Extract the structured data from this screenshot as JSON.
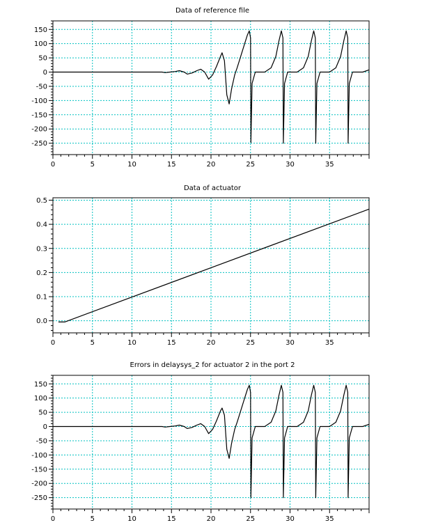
{
  "chart_data": [
    {
      "type": "line",
      "title": "Data of reference file",
      "xlim": [
        0,
        40
      ],
      "ylim": [
        -290,
        180
      ],
      "grid": true,
      "xticks": [
        0,
        5,
        10,
        15,
        20,
        25,
        30,
        35
      ],
      "xtick_labels": [
        "0",
        "5",
        "10",
        "15",
        "20",
        "25",
        "30",
        "35"
      ],
      "yticks": [
        -250,
        -200,
        -150,
        -100,
        -50,
        0,
        50,
        100,
        150
      ],
      "ytick_labels": [
        "-250",
        "-200",
        "-150",
        "-100",
        "-50",
        "0",
        "50",
        "100",
        "150"
      ],
      "series": [
        {
          "line_color": "#000000",
          "x": [
            0,
            13.8,
            14.2,
            14.8,
            15.5,
            16.0,
            16.6,
            17.0,
            17.6,
            18.2,
            18.7,
            19.2,
            19.7,
            20.2,
            20.7,
            21.2,
            21.4,
            21.7,
            22.0,
            22.3,
            22.6,
            23.0,
            23.3,
            23.7,
            24.2,
            24.6,
            24.85,
            25.0,
            25.05,
            25.2,
            25.6,
            26.2,
            26.8,
            27.6,
            28.2,
            28.6,
            28.9,
            29.1,
            29.15,
            29.3,
            29.7,
            30.3,
            30.9,
            31.7,
            32.3,
            32.7,
            33.0,
            33.2,
            33.25,
            33.4,
            33.8,
            34.4,
            35.0,
            35.8,
            36.4,
            36.8,
            37.1,
            37.3,
            37.35,
            37.5,
            37.9,
            38.5,
            39.2,
            40
          ],
          "y": [
            0,
            0,
            -2,
            0,
            2,
            5,
            0,
            -7,
            -3,
            5,
            10,
            0,
            -25,
            -10,
            20,
            55,
            68,
            40,
            -80,
            -112,
            -60,
            -10,
            15,
            50,
            95,
            130,
            145,
            120,
            -248,
            -40,
            0,
            0,
            0,
            15,
            55,
            110,
            145,
            120,
            -250,
            -40,
            0,
            0,
            0,
            15,
            55,
            110,
            145,
            120,
            -250,
            -40,
            0,
            0,
            0,
            15,
            55,
            110,
            145,
            120,
            -250,
            -40,
            0,
            0,
            0,
            8
          ]
        }
      ]
    },
    {
      "type": "line",
      "title": "Data of actuator",
      "xlim": [
        0,
        40
      ],
      "ylim": [
        -0.05,
        0.51
      ],
      "grid": true,
      "xticks": [
        0,
        5,
        10,
        15,
        20,
        25,
        30,
        35
      ],
      "xtick_labels": [
        "0",
        "5",
        "10",
        "15",
        "20",
        "25",
        "30",
        "35"
      ],
      "yticks": [
        0.0,
        0.1,
        0.2,
        0.3,
        0.4,
        0.5
      ],
      "ytick_labels": [
        "0.0",
        "0.1",
        "0.2",
        "0.3",
        "0.4",
        "0.5"
      ],
      "series": [
        {
          "line_color": "#000000",
          "x": [
            0.7,
            1.5,
            40
          ],
          "y": [
            -0.005,
            -0.005,
            0.463
          ]
        }
      ]
    },
    {
      "type": "line",
      "title": "Errors in delaysys_2 for actuator 2 in the port 2",
      "xlim": [
        0,
        40
      ],
      "ylim": [
        -290,
        180
      ],
      "grid": true,
      "xticks": [
        0,
        5,
        10,
        15,
        20,
        25,
        30,
        35
      ],
      "xtick_labels": [
        "0",
        "5",
        "10",
        "15",
        "20",
        "25",
        "30",
        "35"
      ],
      "yticks": [
        -250,
        -200,
        -150,
        -100,
        -50,
        0,
        50,
        100,
        150
      ],
      "ytick_labels": [
        "-250",
        "-200",
        "-150",
        "-100",
        "-50",
        "0",
        "50",
        "100",
        "150"
      ],
      "series": [
        {
          "line_color": "#000000",
          "x": [
            0,
            13.8,
            14.2,
            14.8,
            15.5,
            16.0,
            16.6,
            17.0,
            17.6,
            18.2,
            18.7,
            19.2,
            19.7,
            20.2,
            20.7,
            21.2,
            21.4,
            21.7,
            22.0,
            22.3,
            22.6,
            23.0,
            23.3,
            23.7,
            24.2,
            24.6,
            24.85,
            25.0,
            25.05,
            25.2,
            25.6,
            26.2,
            26.8,
            27.6,
            28.2,
            28.6,
            28.9,
            29.1,
            29.15,
            29.3,
            29.7,
            30.3,
            30.9,
            31.7,
            32.3,
            32.7,
            33.0,
            33.2,
            33.25,
            33.4,
            33.8,
            34.4,
            35.0,
            35.8,
            36.4,
            36.8,
            37.1,
            37.3,
            37.35,
            37.5,
            37.9,
            38.5,
            39.2,
            40
          ],
          "y": [
            0,
            0,
            -2,
            0,
            2,
            5,
            0,
            -7,
            -3,
            5,
            10,
            0,
            -25,
            -10,
            20,
            55,
            65,
            40,
            -80,
            -112,
            -60,
            -10,
            15,
            50,
            95,
            130,
            145,
            120,
            -250,
            -40,
            0,
            0,
            0,
            15,
            55,
            110,
            145,
            120,
            -250,
            -40,
            0,
            0,
            0,
            15,
            55,
            110,
            145,
            120,
            -250,
            -40,
            0,
            0,
            0,
            15,
            55,
            110,
            145,
            120,
            -250,
            -40,
            0,
            0,
            0,
            8
          ]
        }
      ]
    }
  ],
  "colors": {
    "grid": "#00c0c0",
    "axis": "#000000",
    "line": "#000000",
    "background": "#ffffff"
  }
}
